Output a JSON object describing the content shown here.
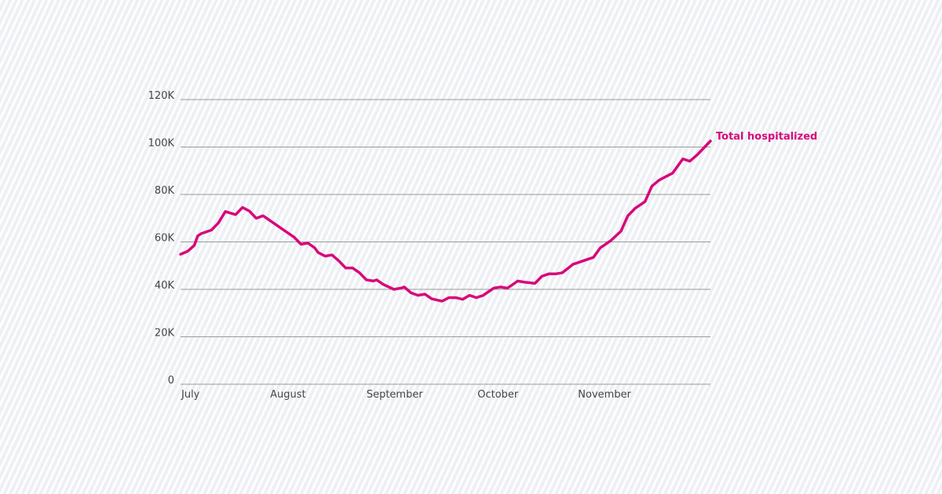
{
  "chart_data": {
    "type": "line",
    "grid": true,
    "ylim": [
      0,
      120000
    ],
    "yticks": [
      {
        "value": 0,
        "label": "0"
      },
      {
        "value": 20000,
        "label": "20K"
      },
      {
        "value": 40000,
        "label": "40K"
      },
      {
        "value": 60000,
        "label": "60K"
      },
      {
        "value": 80000,
        "label": "80K"
      },
      {
        "value": 100000,
        "label": "100K"
      },
      {
        "value": 120000,
        "label": "120K"
      }
    ],
    "xticks": [
      {
        "date": "2020-07-01",
        "label": "July"
      },
      {
        "date": "2020-08-01",
        "label": "August"
      },
      {
        "date": "2020-09-01",
        "label": "September"
      },
      {
        "date": "2020-10-01",
        "label": "October"
      },
      {
        "date": "2020-11-01",
        "label": "November"
      }
    ],
    "xlim": [
      "2020-07-01",
      "2020-12-02"
    ],
    "series": [
      {
        "name": "Total hospitalized",
        "color": "#d8087a",
        "points": [
          [
            "2020-07-01",
            54800
          ],
          [
            "2020-07-03",
            56000
          ],
          [
            "2020-07-05",
            58500
          ],
          [
            "2020-07-06",
            62500
          ],
          [
            "2020-07-07",
            63500
          ],
          [
            "2020-07-09",
            64500
          ],
          [
            "2020-07-10",
            65000
          ],
          [
            "2020-07-12",
            68000
          ],
          [
            "2020-07-14",
            72800
          ],
          [
            "2020-07-17",
            71500
          ],
          [
            "2020-07-19",
            74500
          ],
          [
            "2020-07-21",
            73000
          ],
          [
            "2020-07-23",
            70000
          ],
          [
            "2020-07-25",
            71000
          ],
          [
            "2020-07-28",
            68000
          ],
          [
            "2020-07-31",
            65000
          ],
          [
            "2020-08-03",
            62000
          ],
          [
            "2020-08-05",
            59000
          ],
          [
            "2020-08-07",
            59500
          ],
          [
            "2020-08-09",
            57500
          ],
          [
            "2020-08-10",
            55500
          ],
          [
            "2020-08-12",
            54000
          ],
          [
            "2020-08-14",
            54500
          ],
          [
            "2020-08-16",
            52000
          ],
          [
            "2020-08-18",
            49000
          ],
          [
            "2020-08-20",
            49000
          ],
          [
            "2020-08-22",
            47000
          ],
          [
            "2020-08-24",
            44000
          ],
          [
            "2020-08-26",
            43500
          ],
          [
            "2020-08-27",
            44000
          ],
          [
            "2020-08-29",
            42000
          ],
          [
            "2020-09-01",
            40000
          ],
          [
            "2020-09-03",
            40500
          ],
          [
            "2020-09-04",
            41000
          ],
          [
            "2020-09-06",
            38500
          ],
          [
            "2020-09-08",
            37500
          ],
          [
            "2020-09-10",
            38000
          ],
          [
            "2020-09-12",
            36000
          ],
          [
            "2020-09-15",
            35000
          ],
          [
            "2020-09-17",
            36500
          ],
          [
            "2020-09-19",
            36500
          ],
          [
            "2020-09-21",
            35800
          ],
          [
            "2020-09-23",
            37500
          ],
          [
            "2020-09-25",
            36500
          ],
          [
            "2020-09-27",
            37500
          ],
          [
            "2020-09-30",
            40500
          ],
          [
            "2020-10-02",
            41000
          ],
          [
            "2020-10-04",
            40500
          ],
          [
            "2020-10-07",
            43500
          ],
          [
            "2020-10-09",
            43000
          ],
          [
            "2020-10-12",
            42500
          ],
          [
            "2020-10-14",
            45500
          ],
          [
            "2020-10-16",
            46500
          ],
          [
            "2020-10-18",
            46500
          ],
          [
            "2020-10-20",
            47000
          ],
          [
            "2020-10-23",
            50500
          ],
          [
            "2020-10-26",
            52000
          ],
          [
            "2020-10-29",
            53500
          ],
          [
            "2020-10-31",
            57500
          ],
          [
            "2020-11-03",
            60500
          ],
          [
            "2020-11-06",
            64500
          ],
          [
            "2020-11-08",
            71000
          ],
          [
            "2020-11-10",
            74000
          ],
          [
            "2020-11-13",
            77000
          ],
          [
            "2020-11-15",
            83500
          ],
          [
            "2020-11-17",
            86000
          ],
          [
            "2020-11-19",
            87500
          ],
          [
            "2020-11-21",
            89000
          ],
          [
            "2020-11-24",
            95000
          ],
          [
            "2020-11-26",
            94000
          ],
          [
            "2020-11-28",
            96500
          ],
          [
            "2020-12-02",
            102500
          ]
        ]
      }
    ]
  }
}
